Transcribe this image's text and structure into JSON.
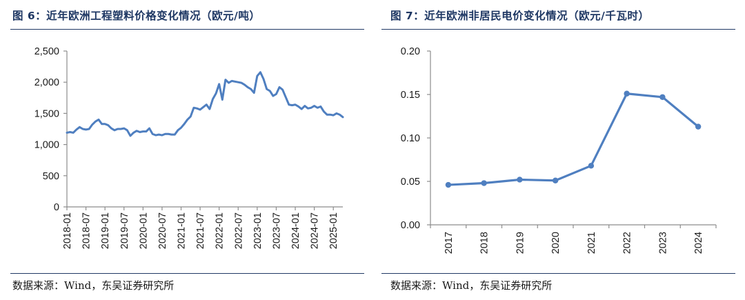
{
  "charts": [
    {
      "title": "图 6：近年欧洲工程塑料价格变化情况（欧元/吨）",
      "source": "数据来源：Wind，东吴证券研究所"
    },
    {
      "title": "图 7：近年欧洲非居民电价变化情况（欧元/千瓦时）",
      "source": "数据来源：Wind，东吴证券研究所"
    }
  ],
  "chart_data": [
    {
      "type": "line",
      "title": "近年欧洲工程塑料价格变化情况（欧元/吨）",
      "xlabel": "",
      "ylabel": "",
      "ylim": [
        0,
        2500
      ],
      "y_ticks": [
        "0",
        "500",
        "1,000",
        "1,500",
        "2,000",
        "2,500"
      ],
      "x_tick_labels": [
        "2018-01",
        "2018-07",
        "2019-01",
        "2019-07",
        "2020-01",
        "2020-07",
        "2021-01",
        "2021-07",
        "2022-01",
        "2022-07",
        "2023-01",
        "2023-07",
        "2024-01",
        "2024-07",
        "2025-01"
      ],
      "grid": false,
      "legend": "none",
      "series_color": "#4f7fc0",
      "series": [
        {
          "name": "",
          "x": [
            "2018-01",
            "2018-02",
            "2018-03",
            "2018-04",
            "2018-05",
            "2018-06",
            "2018-07",
            "2018-08",
            "2018-09",
            "2018-10",
            "2018-11",
            "2018-12",
            "2019-01",
            "2019-02",
            "2019-03",
            "2019-04",
            "2019-05",
            "2019-06",
            "2019-07",
            "2019-08",
            "2019-09",
            "2019-10",
            "2019-11",
            "2019-12",
            "2020-01",
            "2020-02",
            "2020-03",
            "2020-04",
            "2020-05",
            "2020-06",
            "2020-07",
            "2020-08",
            "2020-09",
            "2020-10",
            "2020-11",
            "2020-12",
            "2021-01",
            "2021-02",
            "2021-03",
            "2021-04",
            "2021-05",
            "2021-06",
            "2021-07",
            "2021-08",
            "2021-09",
            "2021-10",
            "2021-11",
            "2021-12",
            "2022-01",
            "2022-02",
            "2022-03",
            "2022-04",
            "2022-05",
            "2022-06",
            "2022-07",
            "2022-08",
            "2022-09",
            "2022-10",
            "2022-11",
            "2022-12",
            "2023-01",
            "2023-02",
            "2023-03",
            "2023-04",
            "2023-05",
            "2023-06",
            "2023-07",
            "2023-08",
            "2023-09",
            "2023-10",
            "2023-11",
            "2023-12",
            "2024-01",
            "2024-02",
            "2024-03",
            "2024-04",
            "2024-05",
            "2024-06",
            "2024-07",
            "2024-08",
            "2024-09",
            "2024-10",
            "2024-11",
            "2024-12",
            "2025-01",
            "2025-02",
            "2025-03",
            "2025-04"
          ],
          "values": [
            1190,
            1200,
            1190,
            1240,
            1280,
            1250,
            1240,
            1250,
            1320,
            1370,
            1400,
            1330,
            1330,
            1310,
            1260,
            1230,
            1250,
            1250,
            1260,
            1230,
            1140,
            1190,
            1220,
            1200,
            1210,
            1210,
            1260,
            1170,
            1150,
            1160,
            1150,
            1170,
            1170,
            1160,
            1160,
            1230,
            1270,
            1330,
            1400,
            1450,
            1590,
            1580,
            1560,
            1600,
            1640,
            1570,
            1730,
            1820,
            1970,
            1720,
            2040,
            1990,
            2020,
            2010,
            2000,
            1990,
            1960,
            1920,
            1890,
            1830,
            2100,
            2160,
            2050,
            1890,
            1860,
            1780,
            1810,
            1920,
            1880,
            1760,
            1640,
            1630,
            1640,
            1610,
            1570,
            1620,
            1580,
            1590,
            1620,
            1590,
            1610,
            1530,
            1480,
            1480,
            1470,
            1500,
            1480,
            1440
          ]
        }
      ]
    },
    {
      "type": "line",
      "title": "近年欧洲非居民电价变化情况（欧元/千瓦时）",
      "xlabel": "",
      "ylabel": "",
      "ylim": [
        0,
        0.2
      ],
      "y_ticks": [
        "0.00",
        "0.05",
        "0.10",
        "0.15",
        "0.20"
      ],
      "categories": [
        "2017",
        "2018",
        "2019",
        "2020",
        "2021",
        "2022",
        "2023",
        "2024"
      ],
      "grid": false,
      "legend": "none",
      "series_color": "#4f7fc0",
      "markers": true,
      "series": [
        {
          "name": "",
          "values": [
            0.046,
            0.048,
            0.052,
            0.051,
            0.068,
            0.151,
            0.147,
            0.113
          ]
        }
      ]
    }
  ]
}
